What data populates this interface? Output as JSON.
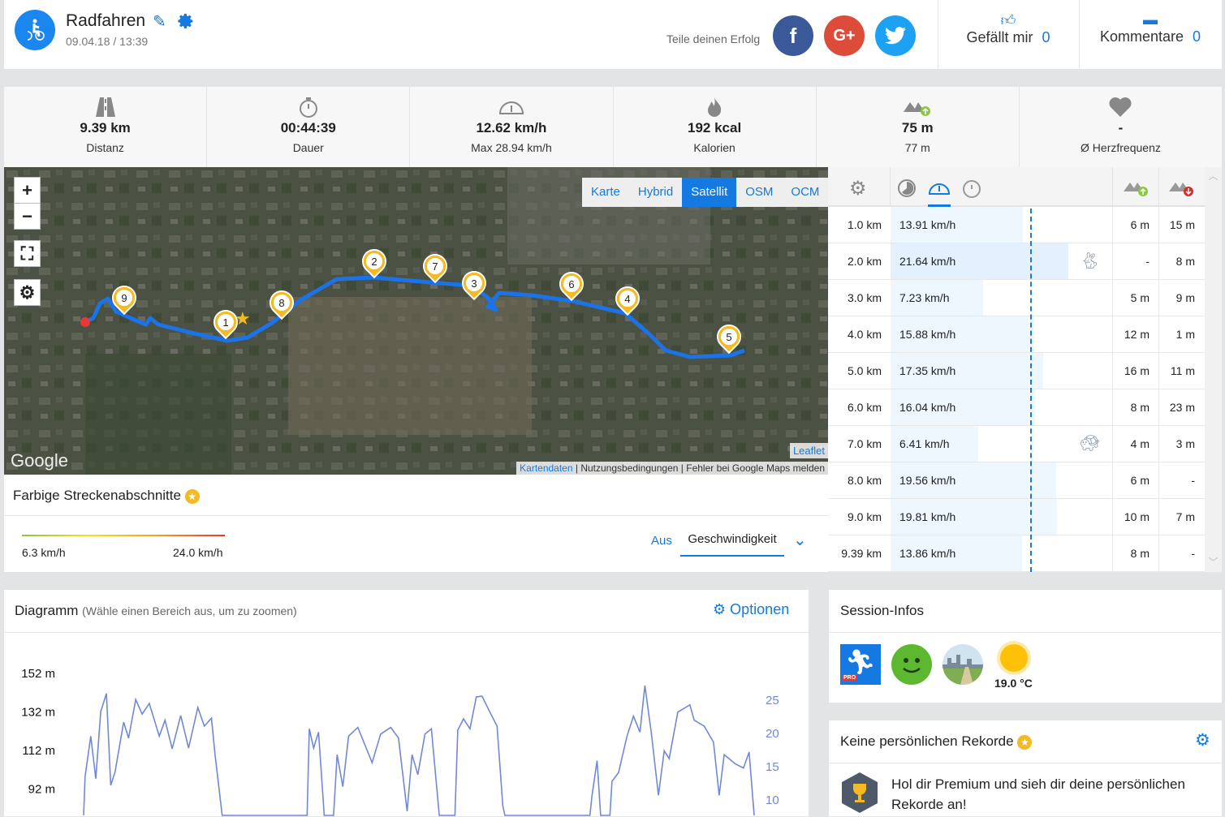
{
  "header": {
    "title": "Radfahren",
    "date": "09.04.18 / 13:39",
    "share_label": "Teile deinen Erfolg",
    "like_label": "Gefällt mir",
    "like_count": "0",
    "comments_label": "Kommentare",
    "comments_count": "0",
    "icons": [
      "cycling-icon",
      "edit-pencil-icon",
      "gear-icon",
      "facebook-icon",
      "google-plus-icon",
      "twitter-icon",
      "thumbs-up-icon",
      "comment-icon"
    ]
  },
  "stats": [
    {
      "icon": "road-icon",
      "value": "9.39 km",
      "label": "Distanz"
    },
    {
      "icon": "stopwatch-icon",
      "value": "00:44:39",
      "label": "Dauer"
    },
    {
      "icon": "speedometer-icon",
      "value": "12.62 km/h",
      "label": "Max 28.94 km/h"
    },
    {
      "icon": "flame-icon",
      "value": "192 kcal",
      "label": "Kalorien"
    },
    {
      "icon": "elevation-up-icon",
      "value": "75 m",
      "label": "77 m"
    },
    {
      "icon": "heart-icon",
      "value": "-",
      "label": "Ø Herzfrequenz"
    }
  ],
  "map": {
    "zoom_in": "+",
    "zoom_out": "−",
    "layers": [
      "Karte",
      "Hybrid",
      "Satellit",
      "OSM",
      "OCM"
    ],
    "active_layer": "Satellit",
    "google_logo": "Google",
    "leaflet": "Leaflet",
    "attribution": [
      "Kartendaten",
      "Nutzungsbedingungen",
      "Fehler bei Google Maps melden"
    ],
    "markers": [
      "1",
      "2",
      "3",
      "4",
      "5",
      "6",
      "7",
      "8",
      "9"
    ]
  },
  "legend": {
    "title": "Farbige Streckenabschnitte",
    "min": "6.3 km/h",
    "max": "24.0 km/h",
    "off": "Aus",
    "selected": "Geschwindigkeit"
  },
  "splits": {
    "rows": [
      {
        "km": "1.0 km",
        "speed": "13.91 km/h",
        "v": 13.91,
        "up": "6 m",
        "down": "15 m",
        "icon": ""
      },
      {
        "km": "2.0 km",
        "speed": "21.64 km/h",
        "v": 21.64,
        "up": "-",
        "down": "8 m",
        "icon": "hare-icon"
      },
      {
        "km": "3.0 km",
        "speed": "7.23 km/h",
        "v": 7.23,
        "up": "5 m",
        "down": "9 m",
        "icon": ""
      },
      {
        "km": "4.0 km",
        "speed": "15.88 km/h",
        "v": 15.88,
        "up": "12 m",
        "down": "1 m",
        "icon": ""
      },
      {
        "km": "5.0 km",
        "speed": "17.35 km/h",
        "v": 17.35,
        "up": "16 m",
        "down": "11 m",
        "icon": ""
      },
      {
        "km": "6.0 km",
        "speed": "16.04 km/h",
        "v": 16.04,
        "up": "8 m",
        "down": "23 m",
        "icon": ""
      },
      {
        "km": "7.0 km",
        "speed": "6.41 km/h",
        "v": 6.41,
        "up": "4 m",
        "down": "3 m",
        "icon": "turtle-icon"
      },
      {
        "km": "8.0 km",
        "speed": "19.56 km/h",
        "v": 19.56,
        "up": "6 m",
        "down": "-",
        "icon": ""
      },
      {
        "km": "9.0 km",
        "speed": "19.81 km/h",
        "v": 19.81,
        "up": "10 m",
        "down": "7 m",
        "icon": ""
      },
      {
        "km": "9.39 km",
        "speed": "13.86 km/h",
        "v": 13.86,
        "up": "8 m",
        "down": "-",
        "icon": ""
      }
    ]
  },
  "diagram": {
    "title": "Diagramm",
    "hint": "(Wähle einen Bereich aus, um zu zoomen)",
    "options": "Optionen"
  },
  "chart_data": {
    "type": "line",
    "left_axis_ticks": [
      "152 m",
      "132 m",
      "112 m",
      "92 m"
    ],
    "right_axis_ticks": [
      "25",
      "20",
      "15",
      "10"
    ],
    "series": [
      {
        "color": "#7088d8",
        "points": [
          [
            0,
            5
          ],
          [
            0.02,
            13.5
          ],
          [
            0.1,
            19.6
          ],
          [
            0.17,
            13.2
          ],
          [
            0.24,
            23.3
          ],
          [
            0.32,
            26
          ],
          [
            0.38,
            12.2
          ],
          [
            0.44,
            14.2
          ],
          [
            0.56,
            21.7
          ],
          [
            0.63,
            19.3
          ],
          [
            0.73,
            25.1
          ],
          [
            0.82,
            22.9
          ],
          [
            0.92,
            24.5
          ],
          [
            1.06,
            19.6
          ],
          [
            1.14,
            22
          ],
          [
            1.24,
            17.7
          ],
          [
            1.36,
            22.7
          ],
          [
            1.47,
            17.8
          ],
          [
            1.6,
            23.9
          ],
          [
            1.69,
            21.1
          ],
          [
            1.79,
            22.3
          ],
          [
            1.84,
            16.8
          ],
          [
            1.94,
            5
          ],
          [
            2.01,
            0
          ],
          [
            3.09,
            0
          ],
          [
            3.13,
            5
          ],
          [
            3.16,
            20.7
          ],
          [
            3.22,
            17.8
          ],
          [
            3.29,
            20.2
          ],
          [
            3.37,
            5
          ],
          [
            3.5,
            5
          ],
          [
            3.55,
            16.8
          ],
          [
            3.63,
            12
          ],
          [
            3.71,
            19.6
          ],
          [
            3.84,
            20.9
          ],
          [
            4.04,
            15.6
          ],
          [
            4.16,
            19.9
          ],
          [
            4.3,
            20.9
          ],
          [
            4.41,
            19.3
          ],
          [
            4.53,
            8.3
          ],
          [
            4.6,
            16.8
          ],
          [
            4.68,
            13.8
          ],
          [
            4.78,
            19.9
          ],
          [
            4.87,
            20.7
          ],
          [
            4.98,
            5
          ],
          [
            5.2,
            5
          ],
          [
            5.24,
            20.5
          ],
          [
            5.32,
            22.2
          ],
          [
            5.41,
            20.7
          ],
          [
            5.5,
            25.5
          ],
          [
            5.58,
            25.6
          ],
          [
            5.69,
            23.2
          ],
          [
            5.79,
            21.1
          ],
          [
            5.87,
            9.1
          ],
          [
            5.9,
            5
          ],
          [
            5.95,
            0
          ],
          [
            7.05,
            0
          ],
          [
            7.09,
            5
          ],
          [
            7.12,
            10.7
          ],
          [
            7.19,
            15.9
          ],
          [
            7.24,
            5
          ],
          [
            7.37,
            5
          ],
          [
            7.4,
            12.8
          ],
          [
            7.49,
            14.1
          ],
          [
            7.61,
            19.6
          ],
          [
            7.7,
            22.6
          ],
          [
            7.79,
            20.2
          ],
          [
            7.86,
            27.2
          ],
          [
            7.95,
            20.1
          ],
          [
            8.05,
            10.7
          ],
          [
            8.13,
            17.4
          ],
          [
            8.2,
            16.2
          ],
          [
            8.32,
            23.2
          ],
          [
            8.49,
            24.3
          ],
          [
            8.55,
            22
          ],
          [
            8.69,
            21.1
          ],
          [
            8.82,
            18.7
          ],
          [
            8.9,
            10.7
          ],
          [
            8.97,
            16.8
          ],
          [
            9.13,
            15.4
          ],
          [
            9.24,
            14.8
          ],
          [
            9.32,
            17.2
          ],
          [
            9.39,
            5
          ]
        ]
      }
    ]
  },
  "session": {
    "title": "Session-Infos",
    "pro_badge": "PRO",
    "temperature": "19.0 °C",
    "icons": [
      "runtastic-pro-icon",
      "happy-face-icon",
      "park-surface-icon",
      "sun-icon"
    ]
  },
  "records": {
    "title": "Keine persönlichen Rekorde",
    "text": "Hol dir Premium und sieh dir deine persönlichen Rekorde an!"
  },
  "colors": {
    "accent": "#1479e0",
    "facebook": "#3b5998",
    "google": "#dd4b39",
    "twitter": "#1da1f2",
    "route": "#1a73e8",
    "marker": "#f5b921"
  }
}
